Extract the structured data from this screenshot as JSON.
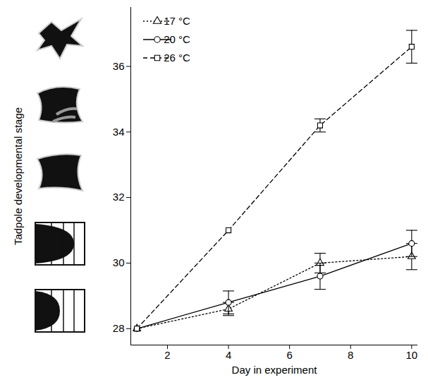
{
  "chart_data": {
    "type": "line",
    "x_label": "Day in experiment",
    "y_label": "Tadpole developmental stage",
    "x": [
      1,
      4,
      7,
      10
    ],
    "xlim": [
      0.8,
      10.2
    ],
    "xticks": [
      2,
      4,
      6,
      8,
      10
    ],
    "ylim": [
      27.5,
      37.8
    ],
    "yticks": [
      28,
      30,
      32,
      34,
      36
    ],
    "legend": "upper left",
    "series": [
      {
        "name": "17 °C",
        "color": "#000000",
        "marker": "triangle",
        "line_style": "dotted",
        "values": [
          28.0,
          28.6,
          30.0,
          30.2
        ],
        "errors": [
          null,
          0.2,
          0.3,
          0.4
        ]
      },
      {
        "name": "20 °C",
        "color": "#000000",
        "marker": "circle",
        "line_style": "solid",
        "values": [
          28.0,
          28.8,
          29.6,
          30.6
        ],
        "errors": [
          null,
          0.35,
          0.4,
          0.4
        ]
      },
      {
        "name": "26 °C",
        "color": "#000000",
        "marker": "square",
        "line_style": "dashed",
        "values": [
          28.0,
          31.0,
          34.2,
          36.6
        ],
        "errors": [
          null,
          null,
          0.2,
          0.5
        ]
      }
    ]
  }
}
